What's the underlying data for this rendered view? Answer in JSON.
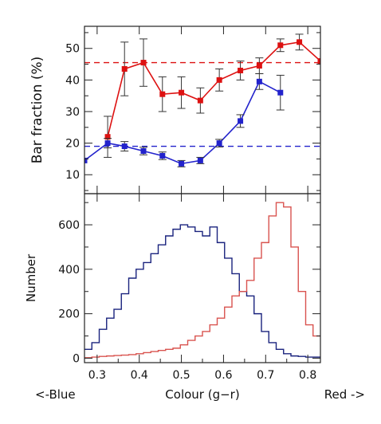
{
  "chart_data": [
    {
      "type": "line",
      "ylabel": "Bar fraction (%)",
      "xlim": [
        0.27,
        0.83
      ],
      "ylim": [
        4,
        57
      ],
      "yticks": [
        10,
        20,
        30,
        40,
        50
      ],
      "grid": false,
      "series": [
        {
          "color": "#dd1111",
          "x": [
            0.325,
            0.365,
            0.41,
            0.455,
            0.5,
            0.545,
            0.59,
            0.64,
            0.685,
            0.735,
            0.78,
            0.83
          ],
          "y": [
            22,
            43.5,
            45.5,
            35.5,
            36,
            33.5,
            40,
            43,
            44.5,
            51,
            52,
            46
          ],
          "err": [
            6.5,
            8.5,
            7.5,
            5.5,
            5,
            4,
            3.5,
            3,
            2.5,
            2,
            2.5,
            null
          ]
        },
        {
          "color": "#2222cc",
          "x": [
            0.27,
            0.325,
            0.365,
            0.41,
            0.455,
            0.5,
            0.545,
            0.59,
            0.64,
            0.685,
            0.735
          ],
          "y": [
            14.5,
            20,
            19,
            17.5,
            16,
            13.5,
            14.5,
            20,
            27,
            39.5,
            36
          ],
          "err": [
            null,
            1.5,
            1.5,
            1.2,
            1.2,
            1,
            1,
            1.2,
            2,
            2.5,
            5.5
          ]
        }
      ],
      "reference_lines": [
        {
          "color": "#dd1111",
          "y": 45.5,
          "style": "dashed"
        },
        {
          "color": "#2222cc",
          "y": 19,
          "style": "dashed"
        }
      ]
    },
    {
      "type": "line",
      "step": true,
      "xlabel": "Colour (g−r)",
      "ylabel": "Number",
      "xlim": [
        0.27,
        0.83
      ],
      "ylim": [
        -20,
        740
      ],
      "xticks": [
        0.3,
        0.4,
        0.5,
        0.6,
        0.7,
        0.8
      ],
      "xtick_labels": [
        "0.3",
        "0.4",
        "0.5",
        "0.6",
        "0.7",
        "0.8"
      ],
      "yticks": [
        0,
        200,
        400,
        600
      ],
      "bin_start": 0.27,
      "bin_width": 0.0175,
      "grid": false,
      "series": [
        {
          "color": "#1a237e",
          "values": [
            40,
            70,
            130,
            180,
            220,
            290,
            360,
            400,
            430,
            470,
            510,
            550,
            580,
            600,
            590,
            570,
            550,
            590,
            520,
            450,
            380,
            300,
            280,
            200,
            120,
            70,
            40,
            20,
            10,
            8,
            5,
            5
          ]
        },
        {
          "color": "#d9534f",
          "values": [
            2,
            5,
            8,
            10,
            12,
            14,
            16,
            20,
            25,
            30,
            35,
            40,
            45,
            60,
            80,
            100,
            120,
            150,
            180,
            230,
            280,
            300,
            350,
            450,
            520,
            640,
            700,
            680,
            500,
            300,
            150,
            100
          ]
        }
      ]
    }
  ],
  "annotations": {
    "left": "<-Blue",
    "right": "Red ->"
  }
}
